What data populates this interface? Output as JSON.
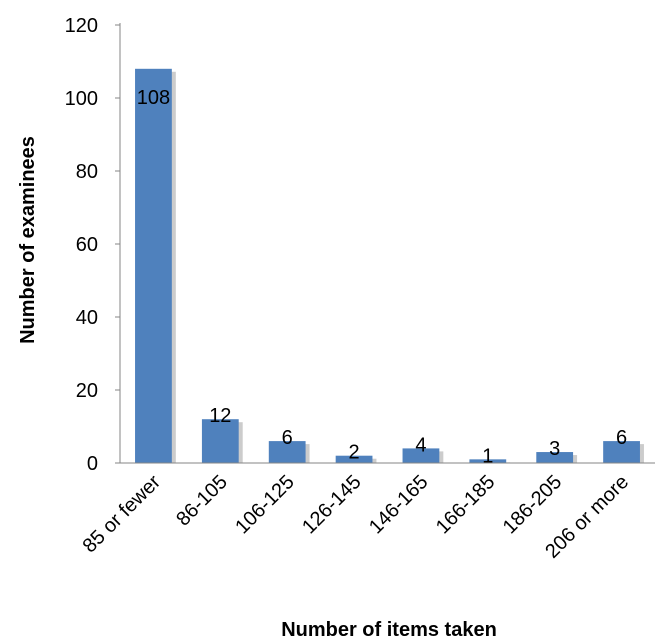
{
  "chart_data": {
    "type": "bar",
    "title": "",
    "xlabel": "Number of items taken",
    "ylabel": "Number of examinees",
    "categories": [
      "85 or fewer",
      "86-105",
      "106-125",
      "126-145",
      "146-165",
      "166-185",
      "186-205",
      "206 or more"
    ],
    "values": [
      108,
      12,
      6,
      2,
      4,
      1,
      3,
      6
    ],
    "data_labels": [
      "108",
      "12",
      "6",
      "2",
      "4",
      "1",
      "3",
      "6"
    ],
    "ylim": [
      0,
      120
    ],
    "yticks": [
      "0",
      "20",
      "40",
      "60",
      "80",
      "100",
      "120"
    ],
    "grid": false,
    "legend": "none",
    "bar_color": "#4F81BD",
    "bar_shadow_color": "#BFBFBF",
    "axis_color": "#868686"
  }
}
